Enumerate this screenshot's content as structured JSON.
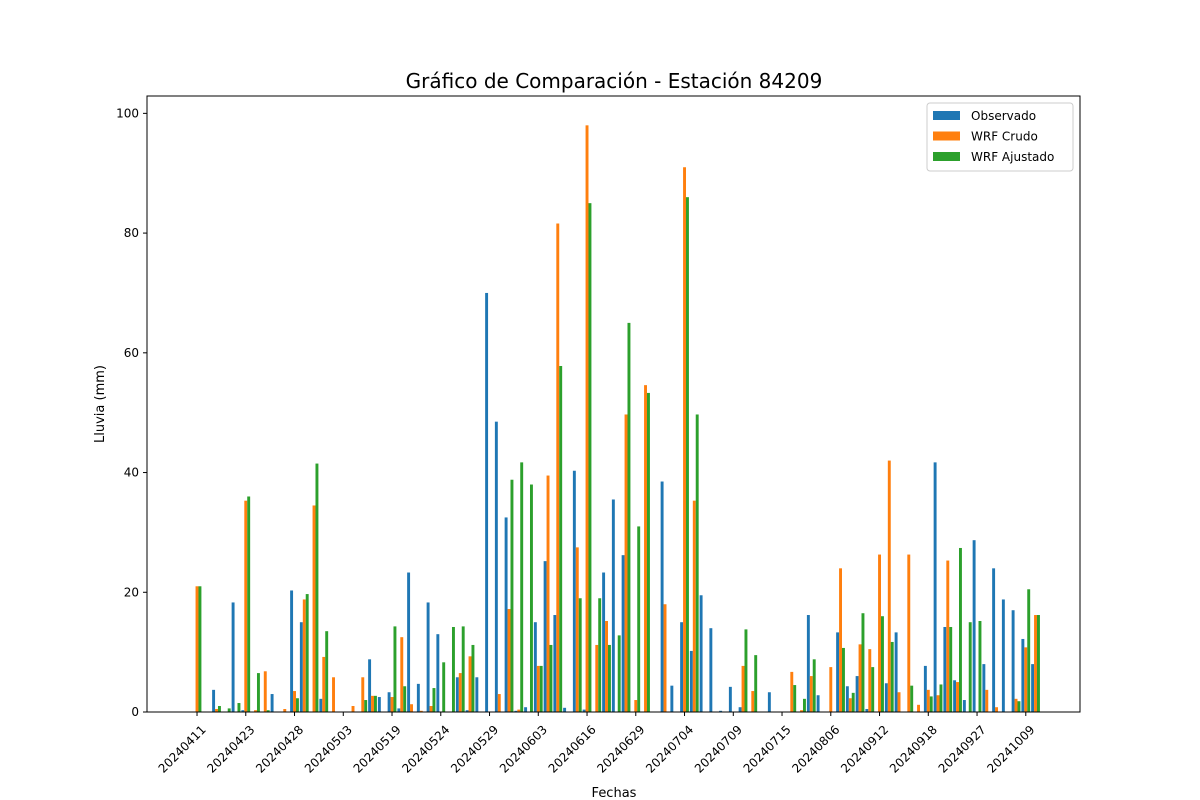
{
  "chart_data": {
    "type": "bar",
    "title": "Gráfico de Comparación - Estación 84209",
    "x_label": "Fechas",
    "y_label": "Lluvia (mm)",
    "categories": [
      "20240411",
      null,
      null,
      null,
      null,
      "20240423",
      null,
      null,
      null,
      null,
      "20240428",
      null,
      null,
      null,
      null,
      "20240503",
      null,
      null,
      null,
      null,
      "20240519",
      null,
      null,
      null,
      null,
      "20240524",
      null,
      null,
      null,
      null,
      "20240529",
      null,
      null,
      null,
      null,
      "20240603",
      null,
      null,
      null,
      null,
      "20240616",
      null,
      null,
      null,
      null,
      "20240629",
      null,
      null,
      null,
      null,
      "20240704",
      null,
      null,
      null,
      null,
      "20240709",
      null,
      null,
      null,
      null,
      "20240715",
      null,
      null,
      null,
      null,
      "20240806",
      null,
      null,
      null,
      null,
      "20240912",
      null,
      null,
      null,
      null,
      "20240918",
      null,
      null,
      null,
      null,
      "20240927",
      null,
      null,
      null,
      null,
      "20241009",
      null
    ],
    "series": [
      {
        "name": "Observado",
        "color": "#1f77b4",
        "values": [
          0,
          0,
          3.7,
          0,
          18.3,
          0.3,
          0,
          0,
          3,
          0,
          20.3,
          15,
          0,
          2.2,
          0,
          0,
          0,
          0,
          8.8,
          2.5,
          3.3,
          0.6,
          23.3,
          4.7,
          18.3,
          13,
          0,
          5.8,
          0.3,
          5.8,
          70,
          48.5,
          32.5,
          0.2,
          0.8,
          15,
          25.2,
          16.2,
          0.7,
          40.3,
          0.4,
          0,
          23.3,
          35.5,
          26.2,
          0,
          0,
          0,
          38.5,
          4.4,
          15,
          10.2,
          19.5,
          14,
          0.2,
          4.2,
          0.8,
          0,
          0,
          3.3,
          0,
          0,
          0,
          16.2,
          2.8,
          0,
          13.3,
          4.3,
          6,
          0.5,
          0,
          4.8,
          13.3,
          0,
          0,
          7.7,
          41.7,
          14.2,
          5.3,
          2,
          28.7,
          8,
          24,
          18.8,
          17,
          12.2,
          8
        ]
      },
      {
        "name": "WRF Crudo",
        "color": "#ff7f0e",
        "values": [
          21,
          0,
          0.5,
          0,
          0,
          35.3,
          0.3,
          6.8,
          0,
          0.5,
          3.5,
          18.8,
          34.5,
          9.2,
          5.8,
          0,
          1,
          5.8,
          2.7,
          0,
          2.5,
          12.5,
          1.3,
          0.2,
          1,
          0,
          0,
          6.5,
          9.3,
          0,
          0,
          3,
          17.2,
          0.4,
          0,
          7.7,
          39.5,
          81.6,
          0,
          27.5,
          98,
          11.2,
          15.2,
          0,
          49.7,
          2,
          54.6,
          0,
          18,
          0,
          91,
          35.3,
          0,
          0,
          0,
          0,
          7.7,
          3.5,
          0,
          0,
          0,
          6.7,
          0.3,
          6,
          0,
          7.5,
          24,
          2.3,
          11.3,
          10.5,
          26.3,
          42,
          3.3,
          26.3,
          1.2,
          3.7,
          2.8,
          25.3,
          5,
          0,
          0,
          3.7,
          0.8,
          0,
          2.2,
          10.8,
          16.2
        ]
      },
      {
        "name": "WRF Ajustado",
        "color": "#2ca02c",
        "values": [
          21,
          0,
          1,
          0.6,
          1.5,
          36,
          6.5,
          0.3,
          0,
          0,
          2.3,
          19.7,
          41.5,
          13.5,
          0,
          0,
          0,
          2,
          2.7,
          0,
          14.3,
          4.3,
          0,
          0,
          4,
          8.3,
          14.2,
          14.3,
          11.2,
          0,
          0,
          0,
          38.8,
          41.7,
          38,
          7.7,
          11.2,
          57.8,
          0,
          19,
          85,
          19,
          11.2,
          12.8,
          65,
          31,
          53.3,
          0,
          0,
          0,
          86,
          49.7,
          0,
          0,
          0,
          0,
          13.8,
          9.5,
          0,
          0,
          0,
          4.5,
          2.2,
          8.8,
          0,
          0,
          10.7,
          3.2,
          16.5,
          7.5,
          16,
          11.7,
          0,
          4.4,
          0,
          2.6,
          4.6,
          14.2,
          27.4,
          15,
          15.2,
          0,
          0,
          0,
          1.8,
          20.5,
          16.2
        ]
      }
    ],
    "ylim": [
      0,
      102.9
    ],
    "yticks": [
      0,
      20,
      40,
      60,
      80,
      100
    ],
    "legend": "upper right"
  }
}
